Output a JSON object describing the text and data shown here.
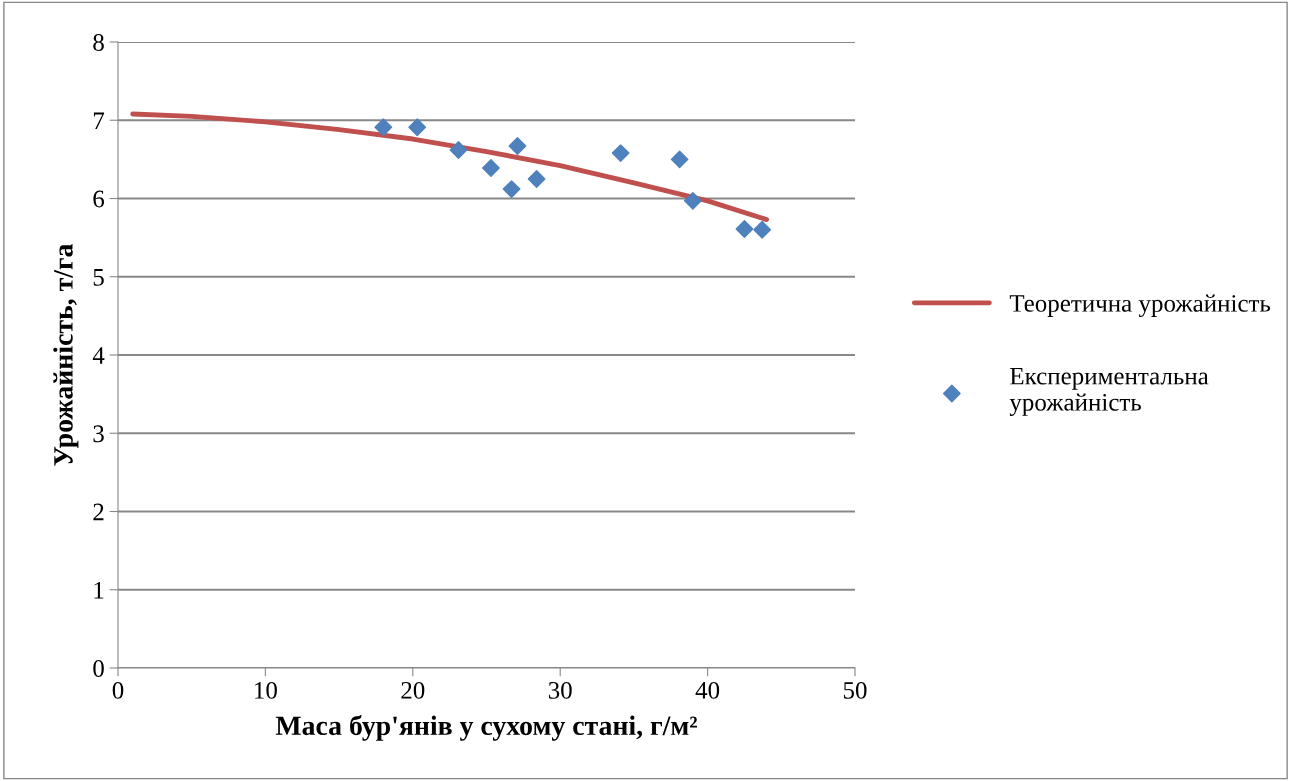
{
  "chart_data": {
    "type": "scatter",
    "xlabel": "Маса бур'янів у сухому стані, г/м²",
    "ylabel": "Урожайність, т/га",
    "xlim": [
      0,
      50
    ],
    "xticks": [
      0,
      10,
      20,
      30,
      40,
      50
    ],
    "ylim": [
      0,
      8
    ],
    "yticks": [
      0,
      1,
      2,
      3,
      4,
      5,
      6,
      7,
      8
    ],
    "grid": "y",
    "legend": "right",
    "series": [
      {
        "name": "Теоретична урожайність",
        "type": "line",
        "color": "#c0504d",
        "marker": "none",
        "line_style": "solid",
        "x": [
          1,
          5,
          10,
          15,
          20,
          25,
          30,
          35,
          40,
          44
        ],
        "values": [
          7.08,
          7.05,
          6.98,
          6.88,
          6.76,
          6.6,
          6.42,
          6.2,
          5.97,
          5.73
        ]
      },
      {
        "name": "Експериментальна урожайність",
        "color": "#4f81bd",
        "marker": "diamond",
        "x": [
          18.0,
          20.3,
          23.1,
          25.3,
          27.1,
          26.7,
          28.4,
          34.1,
          38.1,
          39.0,
          42.5,
          43.7
        ],
        "values": [
          6.91,
          6.91,
          6.62,
          6.39,
          6.67,
          6.12,
          6.25,
          6.58,
          6.5,
          5.97,
          5.61,
          5.6
        ]
      }
    ]
  }
}
